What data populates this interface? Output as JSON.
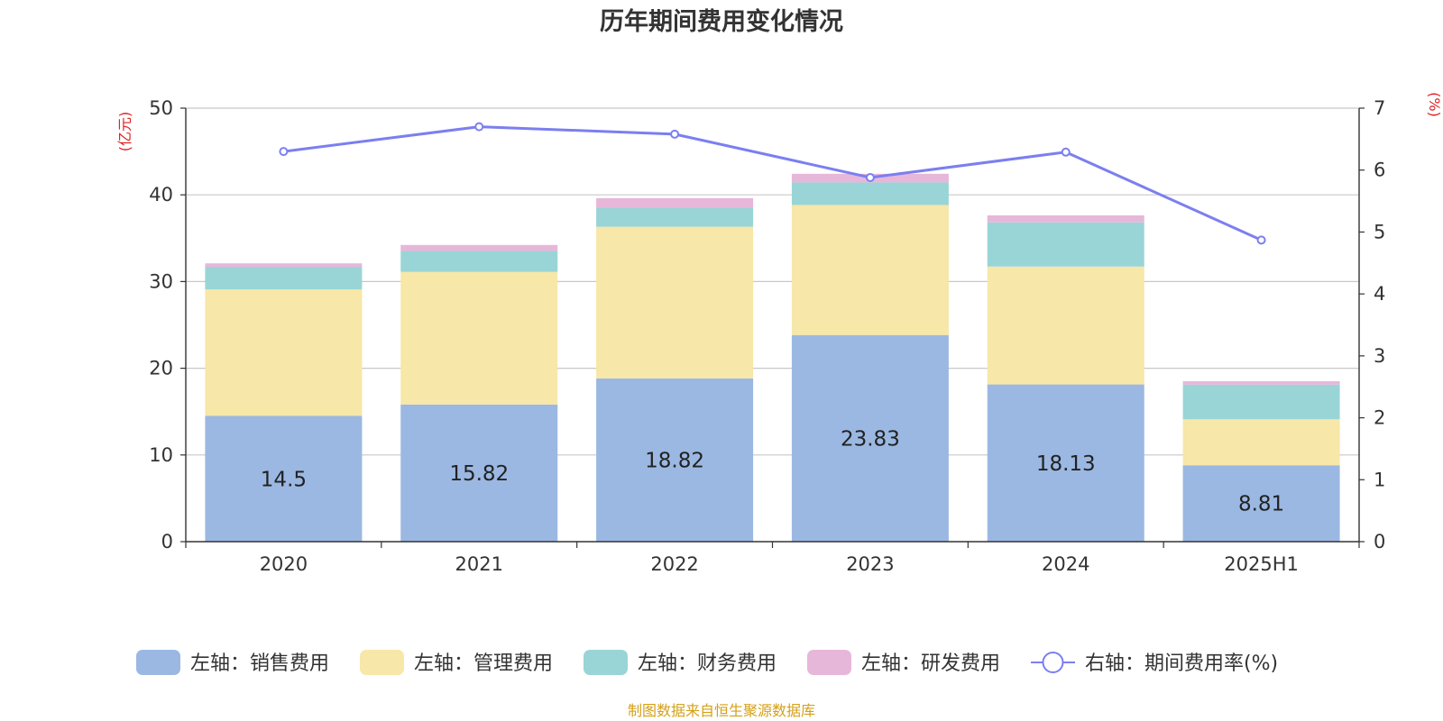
{
  "chart_data": {
    "type": "bar",
    "title": "历年期间费用变化情况",
    "categories": [
      "2020",
      "2021",
      "2022",
      "2023",
      "2024",
      "2025H1"
    ],
    "left_axis": {
      "unit": "(亿元)",
      "ylim": [
        0,
        50
      ],
      "ticks": [
        0,
        10,
        20,
        30,
        40,
        50
      ]
    },
    "right_axis": {
      "unit": "(%)",
      "ylim": [
        0,
        7
      ],
      "ticks": [
        0,
        1,
        2,
        3,
        4,
        5,
        6,
        7
      ]
    },
    "stacked": true,
    "series": [
      {
        "name": "左轴：销售费用",
        "type": "bar",
        "axis": "left",
        "color": "#9bb8e2",
        "values": [
          14.5,
          15.82,
          18.82,
          23.83,
          18.13,
          8.81
        ],
        "labels": [
          "14.5",
          "15.82",
          "18.82",
          "23.83",
          "18.13",
          "8.81"
        ]
      },
      {
        "name": "左轴：管理费用",
        "type": "bar",
        "axis": "left",
        "color": "#f7e7a8",
        "values": [
          14.6,
          15.3,
          17.5,
          15.0,
          13.6,
          5.3
        ]
      },
      {
        "name": "左轴：财务费用",
        "type": "bar",
        "axis": "left",
        "color": "#99d5d6",
        "values": [
          2.6,
          2.4,
          2.2,
          2.6,
          5.1,
          4.0
        ]
      },
      {
        "name": "左轴：研发费用",
        "type": "bar",
        "axis": "left",
        "color": "#e7b7da",
        "values": [
          0.4,
          0.7,
          1.1,
          1.0,
          0.8,
          0.4
        ]
      },
      {
        "name": "右轴：期间费用率(%)",
        "type": "line",
        "axis": "right",
        "color": "#7b7ff0",
        "values": [
          6.3,
          6.7,
          6.58,
          5.88,
          6.29,
          4.87
        ]
      }
    ],
    "grid": true,
    "legend_position": "bottom"
  },
  "source": "制图数据来自恒生聚源数据库"
}
